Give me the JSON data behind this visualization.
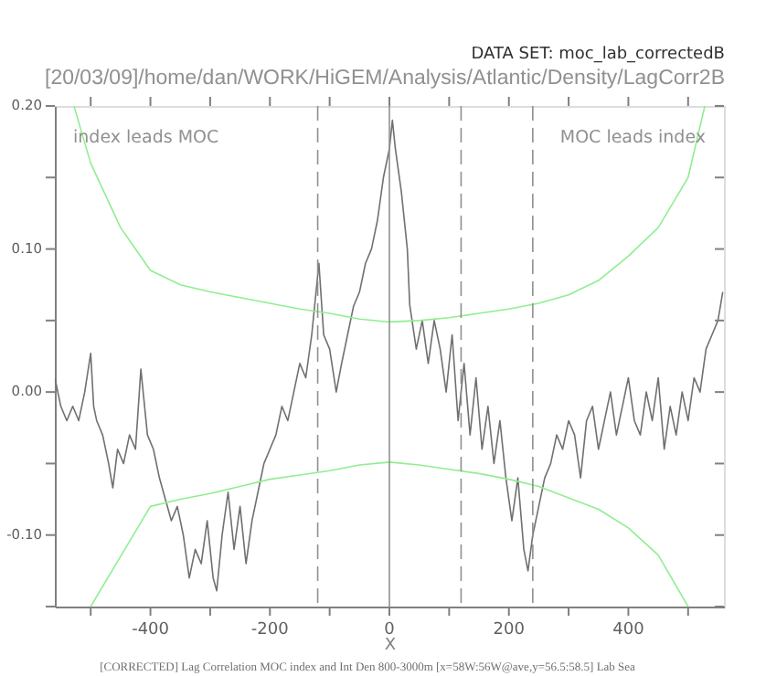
{
  "chart_data": {
    "type": "line",
    "title": "DATA SET: moc_lab_correctedB",
    "subtitle": "[20/03/09]/home/dan/WORK/HiGEM/Analysis/Atlantic/Density/LagCorr2B",
    "xlabel": "X",
    "annotations": [
      "index leads MOC",
      "MOC leads index",
      "[CORRECTED] Lag Correlation MOC index and Int Den 800-3000m [x=58W:56W@ave,y=56.5:58.5] Lab Sea"
    ],
    "xlim": [
      -560,
      560
    ],
    "ylim": [
      -0.15,
      0.2
    ],
    "xticks": [
      {
        "value": -500,
        "label": null
      },
      -400,
      {
        "value": -300,
        "label": null
      },
      -200,
      {
        "value": -100,
        "label": null
      },
      0,
      {
        "value": 100,
        "label": null
      },
      200,
      {
        "value": 300,
        "label": null
      },
      400,
      {
        "value": 500,
        "label": null
      }
    ],
    "yticks": [
      {
        "value": -0.15,
        "label": null
      },
      {
        "value": -0.1,
        "label": "-0.10"
      },
      {
        "value": -0.05,
        "label": null
      },
      {
        "value": 0,
        "label": "0.00"
      },
      {
        "value": 0.05,
        "label": null
      },
      {
        "value": 0.1,
        "label": "0.10"
      },
      {
        "value": 0.15,
        "label": null
      },
      {
        "value": 0.2,
        "label": "0.20"
      }
    ],
    "grid": false,
    "marker": "none",
    "series": [
      {
        "color": "#707070",
        "line_style": "solid",
        "x": [
          -560,
          -550,
          -540,
          -530,
          -520,
          -510,
          -500,
          -495,
          -490,
          -480,
          -470,
          -463,
          -455,
          -445,
          -435,
          -425,
          -416,
          -405,
          -395,
          -385,
          -375,
          -365,
          -355,
          -345,
          -335,
          -325,
          -315,
          -305,
          -295,
          -289,
          -280,
          -270,
          -260,
          -250,
          -240,
          -230,
          -220,
          -210,
          -200,
          -190,
          -180,
          -170,
          -160,
          -150,
          -140,
          -130,
          -118,
          -110,
          -100,
          -89,
          -80,
          -70,
          -60,
          -50,
          -40,
          -30,
          -20,
          -10,
          0,
          5,
          10,
          20,
          30,
          34,
          45,
          55,
          65,
          75,
          85,
          95,
          105,
          115,
          125,
          135,
          145,
          155,
          165,
          175,
          185,
          195,
          205,
          215,
          225,
          232,
          240,
          250,
          260,
          270,
          280,
          290,
          300,
          310,
          320,
          330,
          340,
          350,
          360,
          370,
          380,
          390,
          400,
          410,
          420,
          430,
          440,
          450,
          460,
          470,
          480,
          490,
          500,
          510,
          520,
          530,
          540,
          550,
          558
        ],
        "values": [
          0.01,
          -0.01,
          -0.02,
          -0.01,
          -0.02,
          0.0,
          0.027,
          -0.01,
          -0.02,
          -0.03,
          -0.05,
          -0.067,
          -0.04,
          -0.05,
          -0.03,
          -0.04,
          0.016,
          -0.03,
          -0.04,
          -0.06,
          -0.075,
          -0.09,
          -0.08,
          -0.1,
          -0.13,
          -0.11,
          -0.12,
          -0.09,
          -0.13,
          -0.139,
          -0.1,
          -0.07,
          -0.11,
          -0.08,
          -0.12,
          -0.09,
          -0.07,
          -0.05,
          -0.04,
          -0.03,
          -0.01,
          -0.02,
          0.0,
          0.02,
          0.01,
          0.04,
          0.09,
          0.04,
          0.03,
          0.0,
          0.02,
          0.04,
          0.06,
          0.07,
          0.09,
          0.1,
          0.12,
          0.15,
          0.17,
          0.19,
          0.17,
          0.14,
          0.1,
          0.061,
          0.03,
          0.05,
          0.02,
          0.05,
          0.03,
          0.0,
          0.04,
          -0.02,
          0.02,
          -0.03,
          0.01,
          -0.04,
          -0.01,
          -0.05,
          -0.02,
          -0.06,
          -0.09,
          -0.06,
          -0.11,
          -0.125,
          -0.1,
          -0.08,
          -0.06,
          -0.05,
          -0.03,
          -0.04,
          -0.02,
          -0.03,
          -0.06,
          -0.02,
          -0.01,
          -0.04,
          -0.02,
          0.0,
          -0.03,
          -0.01,
          0.01,
          -0.02,
          -0.03,
          0.0,
          -0.02,
          0.01,
          -0.04,
          -0.01,
          -0.03,
          0.0,
          -0.02,
          0.01,
          0.0,
          0.03,
          0.04,
          0.05,
          0.07
        ]
      },
      {
        "color": "#90ee90",
        "line_style": "solid",
        "x": [
          -528,
          -500,
          -450,
          -400,
          -350,
          -300,
          -250,
          -200,
          -150,
          -100,
          -50,
          0,
          50,
          100,
          150,
          200,
          250,
          300,
          350,
          400,
          450,
          500,
          528
        ],
        "values": [
          0.2,
          0.16,
          0.115,
          0.085,
          0.075,
          0.07,
          0.066,
          0.062,
          0.058,
          0.055,
          0.051,
          0.049,
          0.05,
          0.052,
          0.055,
          0.058,
          0.062,
          0.068,
          0.078,
          0.095,
          0.115,
          0.15,
          0.2
        ]
      },
      {
        "color": "#90ee90",
        "line_style": "solid",
        "x": [
          -500,
          -450,
          -400,
          -350,
          -300,
          -250,
          -200,
          -150,
          -100,
          -50,
          0,
          50,
          100,
          150,
          200,
          250,
          300,
          350,
          400,
          450,
          500
        ],
        "values": [
          -0.15,
          -0.115,
          -0.08,
          -0.075,
          -0.071,
          -0.066,
          -0.061,
          -0.058,
          -0.055,
          -0.051,
          -0.049,
          -0.051,
          -0.054,
          -0.057,
          -0.061,
          -0.066,
          -0.074,
          -0.082,
          -0.095,
          -0.114,
          -0.15
        ]
      }
    ],
    "ref_lines": [
      {
        "axis": "x",
        "value": -120,
        "color": "#909090",
        "line_style": "dashed"
      },
      {
        "axis": "x",
        "value": 0,
        "color": "#909090",
        "line_style": "solid"
      },
      {
        "axis": "x",
        "value": 120,
        "color": "#909090",
        "line_style": "dashed"
      },
      {
        "axis": "x",
        "value": 240,
        "color": "#909090",
        "line_style": "dashed"
      }
    ]
  }
}
